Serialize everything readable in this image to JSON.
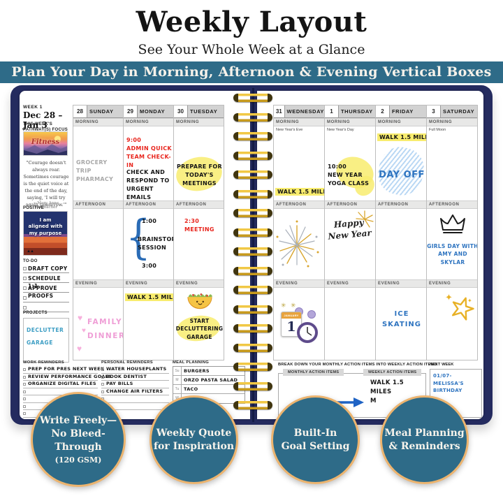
{
  "header": {
    "title": "Weekly Layout",
    "subtitle": "See Your Whole Week at a Glance",
    "banner": "Plan Your Day in Morning, Afternoon & Evening Vertical Boxes"
  },
  "sidebar": {
    "week_label": "WEEK 1",
    "date_range": "Dec 28 – Jan 3",
    "focus_label": "THIS WEEK'S\nPATHWAY(S) FOCUS",
    "focus_image_caption": "Fitness",
    "quote": "\"Courage doesn't always roar. Sometimes courage is the quiet voice at the end of the day, saying, 'I will try again tomorrow.'\"",
    "quote_author": "—Mary Anne Radmacher",
    "affirmation_label": "POSITIVE AFFIRMATION",
    "affirmation_text": "I am\naligned with\nmy purpose",
    "todo_label": "TO-DO",
    "todo_items": [
      "DRAFT COPY",
      "SCHEDULE 1:1",
      "APPROVE PROOFS"
    ],
    "projects_label": "PROJECTS",
    "projects_text": "DECLUTTER\nGARAGE"
  },
  "week": {
    "section_labels": {
      "morning": "MORNING",
      "afternoon": "AFTERNOON",
      "evening": "EVENING"
    },
    "days": [
      {
        "date": "28",
        "name": "SUNDAY",
        "morning_text": "GROCERY TRIP\nPHARMACY",
        "evening_text": "FAMILY\nDINNER"
      },
      {
        "date": "29",
        "name": "MONDAY",
        "morning_red": "9:00\nADMIN QUICK\nTEAM CHECK-IN",
        "morning_black": "CHECK AND\nRESPOND TO\nURGENT EMAILS",
        "afternoon_start": "1:00",
        "afternoon_label": "BRAINSTORM\nSESSION",
        "afternoon_end": "3:00",
        "evening_text": "WALK 1.5 MILES"
      },
      {
        "date": "30",
        "name": "TUESDAY",
        "morning_text": "PREPARE FOR\nTODAY'S\nMEETINGS",
        "afternoon_text": "2:30\nMEETING",
        "evening_text": "START\nDECLUTTERING\nGARAGE"
      },
      {
        "date": "31",
        "name": "WEDNESDAY",
        "note": "New Year's Eve",
        "morning_text": "WALK 1.5 MILES"
      },
      {
        "date": "1",
        "name": "THURSDAY",
        "note": "New Year's Day",
        "morning_text": "10:00\nNEW YEAR\nYOGA CLASS",
        "afternoon_script": "Happy\nNew Year"
      },
      {
        "date": "2",
        "name": "FRIDAY",
        "morning_highlight": "WALK 1.5 MILES",
        "morning_text": "DAY OFF",
        "evening_text": "ICE\nSKATING"
      },
      {
        "date": "3",
        "name": "SATURDAY",
        "note": "Full Moon",
        "afternoon_text": "GIRLS DAY WITH\nAMY AND SKYLAR"
      }
    ]
  },
  "bottom_left": {
    "work_label": "WORK REMINDERS",
    "work_items": [
      "PREP FOR PRES NEXT WEEK",
      "REVIEW PERFORMANCE GOALS",
      "ORGANIZE DIGITAL FILES"
    ],
    "personal_label": "PERSONAL REMINDERS",
    "personal_items": [
      "WATER HOUSEPLANTS",
      "BOOK DENTIST",
      "PAY BILLS",
      "CHANGE AIR FILTERS"
    ],
    "meal_label": "MEAL PLANNING",
    "meal_rows": [
      {
        "day": "Su",
        "meal": "BURGERS"
      },
      {
        "day": "M",
        "meal": "ORZO PASTA SALAD"
      },
      {
        "day": "Tu",
        "meal": "TACO"
      },
      {
        "day": "W",
        "meal": ""
      }
    ]
  },
  "bottom_right": {
    "breakdown_label": "BREAK DOWN YOUR MONTHLY ACTION ITEMS INTO WEEKLY ACTION ITEMS",
    "monthly_tab": "MONTHLY ACTION ITEMS",
    "weekly_tab": "WEEKLY ACTION ITEMS",
    "weekly_item": "WALK 1.5\nMILES\nM",
    "next_week_label": "NEXT WEEK",
    "next_week_item": "01/07-MELISSA'S\nBIRTHDAY"
  },
  "features": [
    {
      "lines": [
        "Write Freely—",
        "No Bleed-Through"
      ],
      "sub": "(120 GSM)"
    },
    {
      "lines": [
        "Weekly Quote",
        "for Inspiration"
      ],
      "sub": ""
    },
    {
      "lines": [
        "Built-In",
        "Goal Setting"
      ],
      "sub": ""
    },
    {
      "lines": [
        "Meal Planning",
        "& Reminders"
      ],
      "sub": ""
    }
  ],
  "stickers": {
    "heart_glyph": "♥",
    "sparkle_glyph": "✦",
    "burst_glyphs": "✳ ✳",
    "tree_glyphs": "▲▲",
    "countdown_month": "JANUARY",
    "countdown_day": "1",
    "brace_glyph": "{"
  },
  "colors": {
    "teal": "#2e6b88",
    "circle_border": "#ecb46f",
    "navy_cover": "#242b5f",
    "gold_coil": "#e9b62a",
    "highlight_yellow": "#f8ec6e",
    "ink_red": "#e8251d",
    "ink_blue": "#2e74c0",
    "ink_pink": "#ef9ed6",
    "ink_gray": "#a8a8a8"
  }
}
